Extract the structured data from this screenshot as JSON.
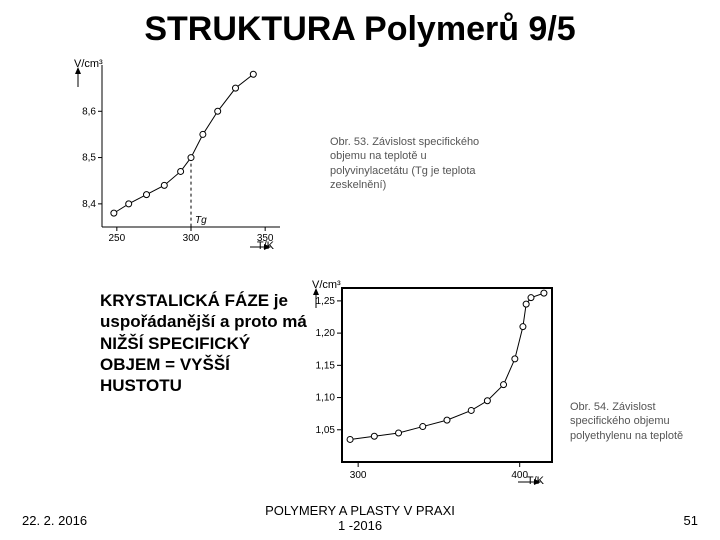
{
  "title": "STRUKTURA Polymerů 9/5",
  "chart1": {
    "type": "line",
    "xlabel": "T/K",
    "ylabel": "V/cm³",
    "xlim": [
      240,
      360
    ],
    "ylim": [
      8.35,
      8.7
    ],
    "xticks": [
      250,
      300,
      350
    ],
    "yticks": [
      8.4,
      8.5,
      8.6
    ],
    "data": [
      {
        "x": 248,
        "y": 8.38
      },
      {
        "x": 258,
        "y": 8.4
      },
      {
        "x": 270,
        "y": 8.42
      },
      {
        "x": 282,
        "y": 8.44
      },
      {
        "x": 293,
        "y": 8.47
      },
      {
        "x": 300,
        "y": 8.5
      },
      {
        "x": 308,
        "y": 8.55
      },
      {
        "x": 318,
        "y": 8.6
      },
      {
        "x": 330,
        "y": 8.65
      },
      {
        "x": 342,
        "y": 8.68
      }
    ],
    "tg_x": 300,
    "line_color": "#000000",
    "marker": "circle",
    "marker_size": 3,
    "line_width": 1,
    "background_color": "#ffffff",
    "axis_color": "#000000",
    "tick_fontsize": 10,
    "label_fontsize": 11,
    "tg_label": "Tg"
  },
  "caption1": "Obr. 53. Závislost specifického objemu na teplotě u polyvinylacetátu (Tg je teplota zeskelnění)",
  "chart2": {
    "type": "line",
    "xlabel": "T/K",
    "ylabel": "V/cm³",
    "xlim": [
      290,
      420
    ],
    "ylim": [
      1.0,
      1.27
    ],
    "xticks": [
      300,
      400
    ],
    "yticks": [
      1.05,
      1.1,
      1.15,
      1.2,
      1.25
    ],
    "data": [
      {
        "x": 295,
        "y": 1.035
      },
      {
        "x": 310,
        "y": 1.04
      },
      {
        "x": 325,
        "y": 1.045
      },
      {
        "x": 340,
        "y": 1.055
      },
      {
        "x": 355,
        "y": 1.065
      },
      {
        "x": 370,
        "y": 1.08
      },
      {
        "x": 380,
        "y": 1.095
      },
      {
        "x": 390,
        "y": 1.12
      },
      {
        "x": 397,
        "y": 1.16
      },
      {
        "x": 402,
        "y": 1.21
      },
      {
        "x": 404,
        "y": 1.245
      },
      {
        "x": 407,
        "y": 1.255
      },
      {
        "x": 415,
        "y": 1.262
      }
    ],
    "line_color": "#000000",
    "marker": "circle",
    "marker_size": 3,
    "line_width": 1,
    "border_width": 2,
    "background_color": "#ffffff",
    "axis_color": "#000000",
    "tick_fontsize": 10,
    "label_fontsize": 11
  },
  "caption2": "Obr. 54. Závislost specifického objemu polyethylenu na teplotě",
  "textblock": "KRYSTALICKÁ FÁZE je uspořádanější a proto má NIŽŠÍ SPECIFICKÝ OBJEM = VYŠŠÍ HUSTOTU",
  "footer": {
    "date": "22. 2. 2016",
    "center": "POLYMERY A PLASTY V PRAXI\n1 -2016",
    "page": "51"
  }
}
